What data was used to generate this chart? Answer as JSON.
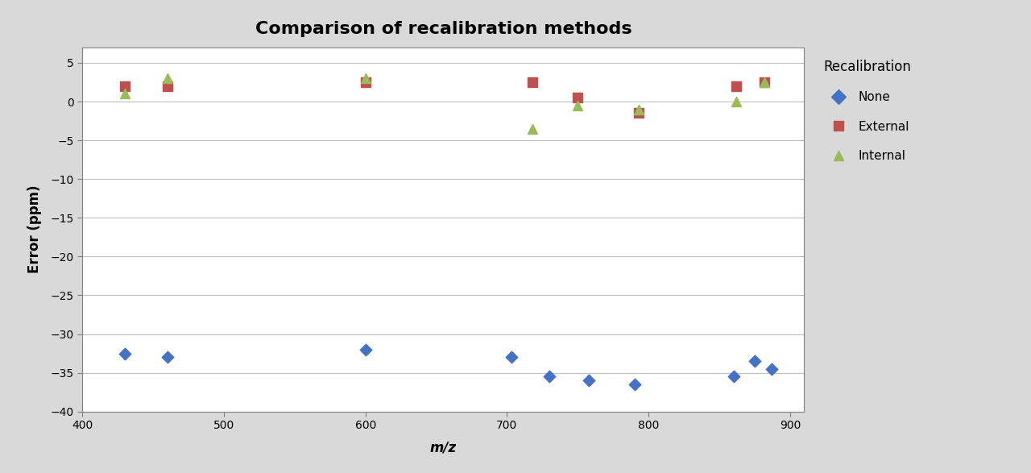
{
  "title": "Comparison of recalibration methods",
  "xlabel": "m/z",
  "ylabel": "Error (ppm)",
  "xlim": [
    400,
    910
  ],
  "ylim": [
    -40,
    7
  ],
  "yticks": [
    5,
    0,
    -5,
    -10,
    -15,
    -20,
    -25,
    -30,
    -35,
    -40
  ],
  "xticks": [
    400,
    500,
    600,
    700,
    800,
    900
  ],
  "none_x": [
    430,
    460,
    600,
    703,
    730,
    758,
    790,
    860,
    875,
    887
  ],
  "none_y": [
    -32.5,
    -33.0,
    -32.0,
    -33.0,
    -35.5,
    -36.0,
    -36.5,
    -35.5,
    -33.5,
    -34.5
  ],
  "external_x": [
    430,
    460,
    600,
    718,
    750,
    793,
    862,
    882
  ],
  "external_y": [
    2.0,
    2.0,
    2.5,
    2.5,
    0.5,
    -1.5,
    2.0,
    2.5
  ],
  "internal_x": [
    430,
    460,
    600,
    718,
    750,
    793,
    862,
    882
  ],
  "internal_y": [
    1.0,
    3.0,
    3.0,
    -3.5,
    -0.5,
    -1.0,
    0.0,
    2.5
  ],
  "none_color": "#4472C4",
  "external_color": "#C0504D",
  "internal_color": "#9BBB59",
  "legend_title": "Recalibration",
  "fig_bg_color": "#D9D9D9",
  "plot_bg_color": "#FFFFFF",
  "grid_color": "#BFBFBF",
  "title_fontsize": 16,
  "axis_label_fontsize": 12,
  "tick_fontsize": 10
}
